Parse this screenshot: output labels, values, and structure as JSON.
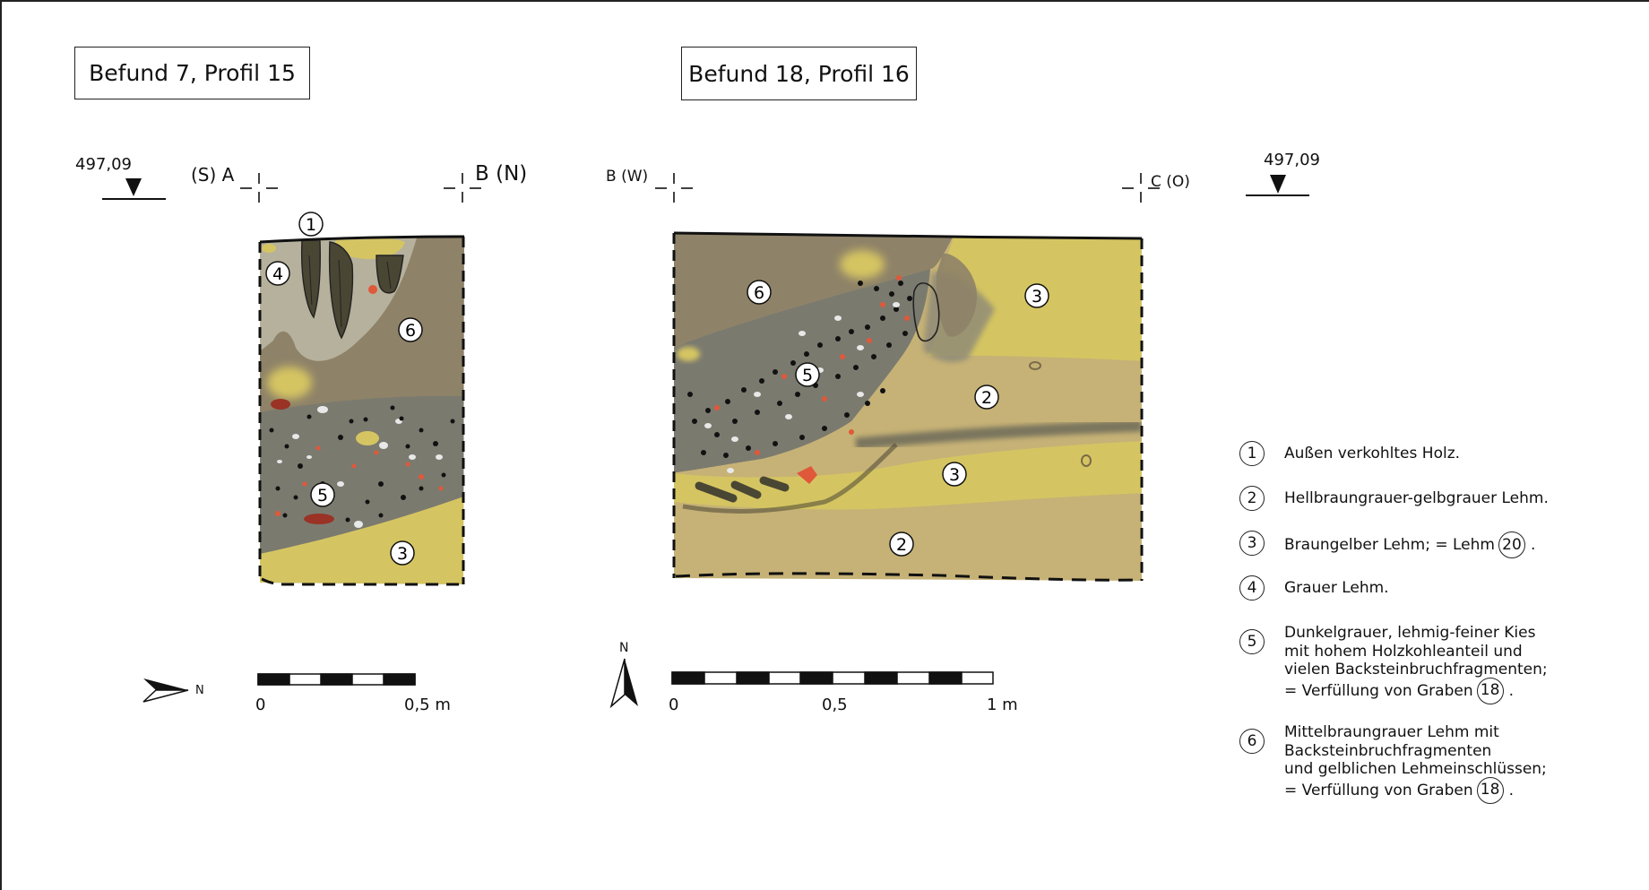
{
  "titles": {
    "left": "Befund 7, Profil 15",
    "right": "Befund 18, Profil 16"
  },
  "height_markers": {
    "left": "497,09",
    "right": "497,09"
  },
  "profile_points": {
    "left_a": "(S) A",
    "left_b": "B (N)",
    "right_b": "B (W)",
    "right_c": "C (O)"
  },
  "layer_numbers": {
    "p1": [
      "1",
      "4",
      "6",
      "5",
      "3"
    ],
    "p2": [
      "6",
      "5",
      "3",
      "2",
      "3",
      "2"
    ]
  },
  "north": {
    "left": "N",
    "right": "N"
  },
  "scales": {
    "left": {
      "start": "0",
      "end": "0,5 m"
    },
    "right": {
      "start": "0",
      "mid": "0,5",
      "end": "1 m"
    }
  },
  "legend": [
    {
      "num": "1",
      "lines": [
        "Außen verkohltes Holz."
      ]
    },
    {
      "num": "2",
      "lines": [
        "Hellbraungrauer-gelbgrauer Lehm."
      ]
    },
    {
      "num": "3",
      "lines": [
        "Braungelber Lehm; = Lehm"
      ],
      "ref": "20",
      "suffix": "."
    },
    {
      "num": "4",
      "lines": [
        "Grauer Lehm."
      ]
    },
    {
      "num": "5",
      "lines": [
        "Dunkelgrauer, lehmig-feiner Kies",
        "mit hohem Holzkohleanteil und",
        "vielen Backsteinbruchfragmenten;",
        "= Verfüllung von Graben"
      ],
      "ref": "18",
      "suffix": "."
    },
    {
      "num": "6",
      "lines": [
        "Mittelbraungrauer Lehm mit",
        "Backsteinbruchfragmenten",
        "und gelblichen Lehmeinschlüssen;",
        "= Verfüllung von Graben"
      ],
      "ref": "18",
      "suffix": "."
    }
  ],
  "colors": {
    "brown_grey": "#8e8268",
    "light_grey": "#b6b19c",
    "dark_grey": "#7b7a6f",
    "yellow": "#d5c562",
    "light_brown_yellow": "#c6b276",
    "charcoal": "#4a4634",
    "brick_red": "#e0583a",
    "dark_red": "#9a3226"
  }
}
